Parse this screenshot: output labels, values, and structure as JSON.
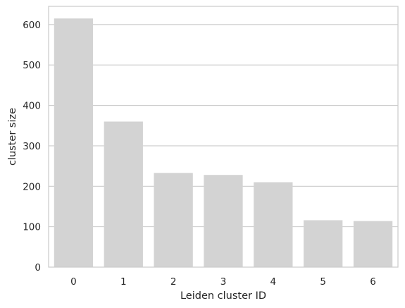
{
  "chart_data": {
    "type": "bar",
    "categories": [
      "0",
      "1",
      "2",
      "3",
      "4",
      "5",
      "6"
    ],
    "values": [
      615,
      360,
      233,
      228,
      210,
      116,
      114
    ],
    "xlabel": "Leiden cluster ID",
    "ylabel": "cluster size",
    "ylim": [
      0,
      645
    ],
    "yticks": [
      0,
      100,
      200,
      300,
      400,
      500,
      600
    ],
    "grid": "horizontal",
    "bar_color": "#d3d3d3",
    "grid_color": "#cccccc",
    "spine_color": "#cccccc",
    "background": "#ffffff"
  }
}
